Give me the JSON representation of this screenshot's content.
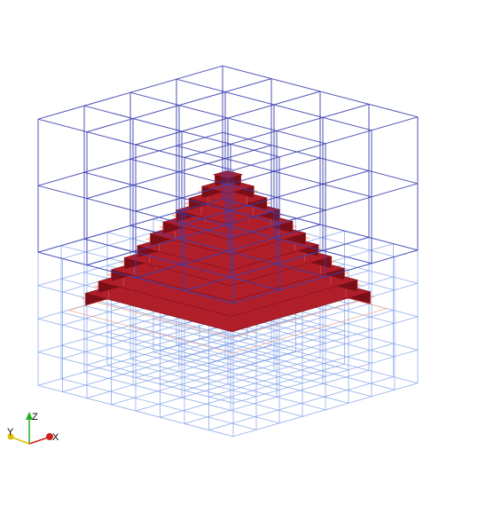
{
  "viewer": {
    "background": "#ffffff",
    "grid_color_outer": "#3a3fae",
    "grid_color_inner": "#7e9fe8",
    "mesh_color_dark": "#7a0f18",
    "mesh_color_mid": "#b01e2a",
    "mesh_color_light": "#f0a890"
  },
  "axes": {
    "x_label": "X",
    "y_label": "Y",
    "z_label": "Z",
    "x_color": "#d0201c",
    "y_color": "#d8c000",
    "z_color": "#20b020"
  }
}
